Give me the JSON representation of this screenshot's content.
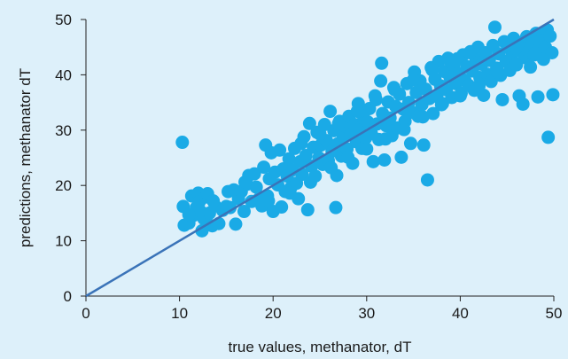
{
  "chart_data": {
    "type": "scatter",
    "title": "",
    "xlabel": "true values, methanator, dT",
    "ylabel": "predictions, methanator dT",
    "xlim": [
      0,
      50
    ],
    "ylim": [
      0,
      50
    ],
    "x_ticks": [
      "0",
      "10",
      "20",
      "30",
      "40",
      "50"
    ],
    "y_ticks": [
      "0",
      "10",
      "20",
      "30",
      "40",
      "50"
    ],
    "grid": false,
    "legend": "none",
    "point_color": "#1aaae6",
    "line_color": "#3a73b8",
    "reference_line": [
      [
        0,
        0
      ],
      [
        50,
        50
      ]
    ],
    "points": [
      [
        10.3,
        27.8
      ],
      [
        10.4,
        16.2
      ],
      [
        10.5,
        12.8
      ],
      [
        11.0,
        13.2
      ],
      [
        11.3,
        18.1
      ],
      [
        11.5,
        14.6
      ],
      [
        11.8,
        16.0
      ],
      [
        12.0,
        18.6
      ],
      [
        12.1,
        17.0
      ],
      [
        12.4,
        11.8
      ],
      [
        12.6,
        14.0
      ],
      [
        12.8,
        17.9
      ],
      [
        13.0,
        18.5
      ],
      [
        13.2,
        15.0
      ],
      [
        13.5,
        12.7
      ],
      [
        13.8,
        16.3
      ],
      [
        14.2,
        13.1
      ],
      [
        14.6,
        15.5
      ],
      [
        15.0,
        16.2
      ],
      [
        15.4,
        16.0
      ],
      [
        15.8,
        19.2
      ],
      [
        16.0,
        13.0
      ],
      [
        16.3,
        17.6
      ],
      [
        16.6,
        18.9
      ],
      [
        16.9,
        15.3
      ],
      [
        17.2,
        20.2
      ],
      [
        17.4,
        21.8
      ],
      [
        17.7,
        17.1
      ],
      [
        18.0,
        22.1
      ],
      [
        18.2,
        19.7
      ],
      [
        18.5,
        17.6
      ],
      [
        18.8,
        16.3
      ],
      [
        19.0,
        23.3
      ],
      [
        19.2,
        27.3
      ],
      [
        19.4,
        18.1
      ],
      [
        19.6,
        21.2
      ],
      [
        19.8,
        25.9
      ],
      [
        20.0,
        15.3
      ],
      [
        20.2,
        22.4
      ],
      [
        20.5,
        20.1
      ],
      [
        20.7,
        26.4
      ],
      [
        20.9,
        16.1
      ],
      [
        21.1,
        23.0
      ],
      [
        21.3,
        18.9
      ],
      [
        21.5,
        21.7
      ],
      [
        21.7,
        24.8
      ],
      [
        21.9,
        19.6
      ],
      [
        22.1,
        22.8
      ],
      [
        22.3,
        26.7
      ],
      [
        22.5,
        20.4
      ],
      [
        22.7,
        17.6
      ],
      [
        22.9,
        24.3
      ],
      [
        23.1,
        22.0
      ],
      [
        23.3,
        28.8
      ],
      [
        23.5,
        25.4
      ],
      [
        23.7,
        15.6
      ],
      [
        23.9,
        31.2
      ],
      [
        24.1,
        23.5
      ],
      [
        24.3,
        26.9
      ],
      [
        24.5,
        21.7
      ],
      [
        24.7,
        29.6
      ],
      [
        24.9,
        25.0
      ],
      [
        25.1,
        27.3
      ],
      [
        25.3,
        23.8
      ],
      [
        25.5,
        31.0
      ],
      [
        25.7,
        28.1
      ],
      [
        25.9,
        24.5
      ],
      [
        26.1,
        33.4
      ],
      [
        26.3,
        26.2
      ],
      [
        26.5,
        29.9
      ],
      [
        26.7,
        16.0
      ],
      [
        26.8,
        21.8
      ],
      [
        26.9,
        27.5
      ],
      [
        27.1,
        31.6
      ],
      [
        27.3,
        25.3
      ],
      [
        27.5,
        28.9
      ],
      [
        27.7,
        30.7
      ],
      [
        27.9,
        26.6
      ],
      [
        28.1,
        32.5
      ],
      [
        28.3,
        29.2
      ],
      [
        28.5,
        24.0
      ],
      [
        28.7,
        31.0
      ],
      [
        28.9,
        27.9
      ],
      [
        29.1,
        34.8
      ],
      [
        29.3,
        30.3
      ],
      [
        29.5,
        26.7
      ],
      [
        29.7,
        32.1
      ],
      [
        29.9,
        28.6
      ],
      [
        30.1,
        31.5
      ],
      [
        30.3,
        33.9
      ],
      [
        30.5,
        29.4
      ],
      [
        30.7,
        24.3
      ],
      [
        30.9,
        36.2
      ],
      [
        31.1,
        31.1
      ],
      [
        31.3,
        28.3
      ],
      [
        31.5,
        38.9
      ],
      [
        31.6,
        42.1
      ],
      [
        31.7,
        33.0
      ],
      [
        31.9,
        24.6
      ],
      [
        32.1,
        30.8
      ],
      [
        32.3,
        35.1
      ],
      [
        32.5,
        32.2
      ],
      [
        32.7,
        29.0
      ],
      [
        32.9,
        37.7
      ],
      [
        33.1,
        34.3
      ],
      [
        33.3,
        30.4
      ],
      [
        33.5,
        36.5
      ],
      [
        33.7,
        25.1
      ],
      [
        33.9,
        33.8
      ],
      [
        34.1,
        31.6
      ],
      [
        34.3,
        38.4
      ],
      [
        34.5,
        35.0
      ],
      [
        34.7,
        27.6
      ],
      [
        34.9,
        33.2
      ],
      [
        35.1,
        40.5
      ],
      [
        35.3,
        36.8
      ],
      [
        35.5,
        32.5
      ],
      [
        35.7,
        38.9
      ],
      [
        35.9,
        34.6
      ],
      [
        36.1,
        27.3
      ],
      [
        36.3,
        37.4
      ],
      [
        36.5,
        21.0
      ],
      [
        36.7,
        35.7
      ],
      [
        36.9,
        41.3
      ],
      [
        37.1,
        33.0
      ],
      [
        37.3,
        39.2
      ],
      [
        37.5,
        36.1
      ],
      [
        37.7,
        42.4
      ],
      [
        37.9,
        38.0
      ],
      [
        38.1,
        34.8
      ],
      [
        38.3,
        40.6
      ],
      [
        38.5,
        37.3
      ],
      [
        38.7,
        43.0
      ],
      [
        38.9,
        39.6
      ],
      [
        39.1,
        35.9
      ],
      [
        39.3,
        41.8
      ],
      [
        39.5,
        38.4
      ],
      [
        39.7,
        42.9
      ],
      [
        39.9,
        40.2
      ],
      [
        40.1,
        36.7
      ],
      [
        40.3,
        43.6
      ],
      [
        40.5,
        39.0
      ],
      [
        40.7,
        41.5
      ],
      [
        40.9,
        38.1
      ],
      [
        41.1,
        44.2
      ],
      [
        41.3,
        40.7
      ],
      [
        41.5,
        37.2
      ],
      [
        41.7,
        42.7
      ],
      [
        41.9,
        45.0
      ],
      [
        42.1,
        39.5
      ],
      [
        42.3,
        41.9
      ],
      [
        42.5,
        36.3
      ],
      [
        42.7,
        44.0
      ],
      [
        42.9,
        40.1
      ],
      [
        43.1,
        42.6
      ],
      [
        43.3,
        38.8
      ],
      [
        43.5,
        45.3
      ],
      [
        43.7,
        48.6
      ],
      [
        43.9,
        41.2
      ],
      [
        44.1,
        43.8
      ],
      [
        44.3,
        39.9
      ],
      [
        44.5,
        35.5
      ],
      [
        44.7,
        46.0
      ],
      [
        44.9,
        42.4
      ],
      [
        45.1,
        44.9
      ],
      [
        45.3,
        40.8
      ],
      [
        45.5,
        43.3
      ],
      [
        45.7,
        46.6
      ],
      [
        45.9,
        42.0
      ],
      [
        46.1,
        44.5
      ],
      [
        46.3,
        36.2
      ],
      [
        46.5,
        45.8
      ],
      [
        46.7,
        34.7
      ],
      [
        46.9,
        43.1
      ],
      [
        47.1,
        46.9
      ],
      [
        47.3,
        44.2
      ],
      [
        47.5,
        41.4
      ],
      [
        47.7,
        45.6
      ],
      [
        47.9,
        43.6
      ],
      [
        48.1,
        47.5
      ],
      [
        48.3,
        36.0
      ],
      [
        48.5,
        44.9
      ],
      [
        48.7,
        46.2
      ],
      [
        48.9,
        42.8
      ],
      [
        49.1,
        45.0
      ],
      [
        49.3,
        48.1
      ],
      [
        49.4,
        28.7
      ],
      [
        49.6,
        47.0
      ],
      [
        49.8,
        44.0
      ],
      [
        49.9,
        36.4
      ],
      [
        19.5,
        17.2
      ],
      [
        21.8,
        18.6
      ],
      [
        24.0,
        20.6
      ],
      [
        26.2,
        23.2
      ],
      [
        28.0,
        25.1
      ],
      [
        30.0,
        26.6
      ],
      [
        32.0,
        28.4
      ],
      [
        34.0,
        30.1
      ],
      [
        36.0,
        32.4
      ],
      [
        38.0,
        34.6
      ],
      [
        40.0,
        36.2
      ],
      [
        42.0,
        38.0
      ],
      [
        44.0,
        40.5
      ],
      [
        46.0,
        41.8
      ],
      [
        48.0,
        43.9
      ],
      [
        17.0,
        20.6
      ],
      [
        15.2,
        18.9
      ],
      [
        13.6,
        17.2
      ],
      [
        12.2,
        15.4
      ],
      [
        11.0,
        14.7
      ],
      [
        23.0,
        27.6
      ],
      [
        25.0,
        29.3
      ],
      [
        27.0,
        31.2
      ],
      [
        29.0,
        33.4
      ],
      [
        31.0,
        35.5
      ],
      [
        33.0,
        37.3
      ],
      [
        35.0,
        39.1
      ],
      [
        37.0,
        40.9
      ],
      [
        39.0,
        42.3
      ],
      [
        41.0,
        44.0
      ]
    ]
  }
}
